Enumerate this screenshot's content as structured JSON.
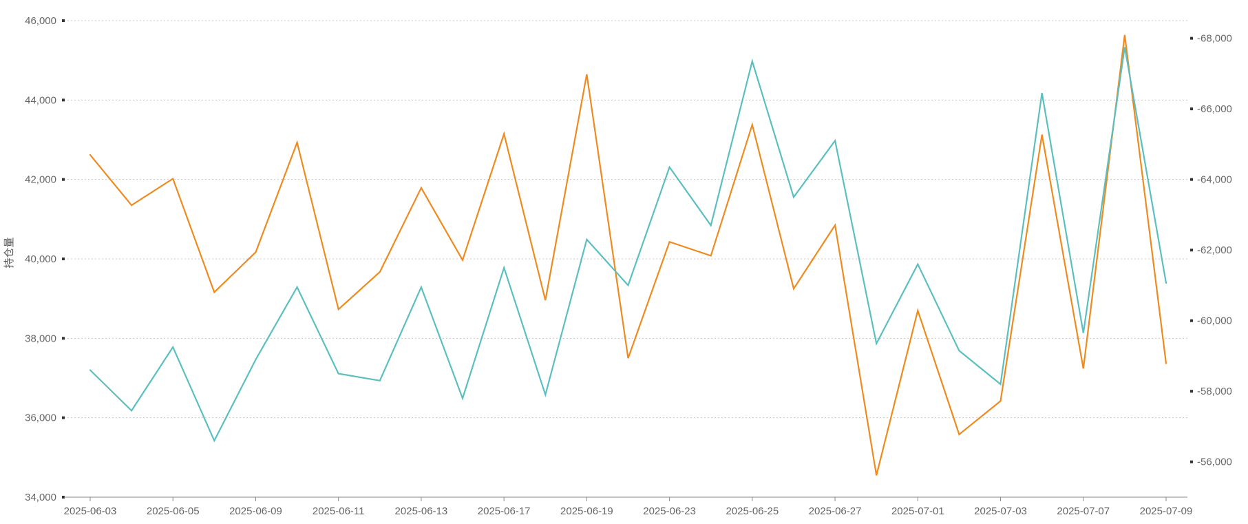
{
  "chart_data": {
    "type": "line",
    "ylabel": "持仓量",
    "x": [
      "2025-06-03",
      "2025-06-04",
      "2025-06-05",
      "2025-06-06",
      "2025-06-09",
      "2025-06-10",
      "2025-06-11",
      "2025-06-12",
      "2025-06-13",
      "2025-06-16",
      "2025-06-17",
      "2025-06-18",
      "2025-06-19",
      "2025-06-20",
      "2025-06-23",
      "2025-06-24",
      "2025-06-25",
      "2025-06-26",
      "2025-06-27",
      "2025-06-30",
      "2025-07-01",
      "2025-07-02",
      "2025-07-03",
      "2025-07-04",
      "2025-07-07",
      "2025-07-08",
      "2025-07-09"
    ],
    "x_tick_labels": [
      "2025-06-03",
      "2025-06-05",
      "2025-06-09",
      "2025-06-11",
      "2025-06-13",
      "2025-06-17",
      "2025-06-19",
      "2025-06-23",
      "2025-06-25",
      "2025-06-27",
      "2025-07-01",
      "2025-07-03",
      "2025-07-07",
      "2025-07-09"
    ],
    "y_left": {
      "ticks": [
        "34,000",
        "36,000",
        "38,000",
        "40,000",
        "42,000",
        "44,000",
        "46,000"
      ],
      "range": [
        34000,
        46000
      ]
    },
    "y_right": {
      "ticks": [
        "-56,000",
        "-58,000",
        "-60,000",
        "-62,000",
        "-64,000",
        "-66,000",
        "-68,000"
      ],
      "range": [
        -55000,
        -68500
      ],
      "inverted": true
    },
    "grid": true,
    "series": [
      {
        "axis": "left",
        "color": "#ef8a1e",
        "values": [
          42620,
          41350,
          42020,
          39160,
          40170,
          42930,
          38730,
          39670,
          41790,
          39970,
          43150,
          38960,
          44650,
          37500,
          40430,
          40080,
          43380,
          39250,
          40850,
          34550,
          38700,
          35580,
          36420,
          43130,
          37240,
          45640,
          37370
        ]
      },
      {
        "axis": "right",
        "color": "#5bbfbf",
        "values": [
          -58600,
          -57450,
          -59250,
          -56600,
          -58900,
          -60950,
          -58500,
          -58300,
          -60950,
          -57800,
          -61500,
          -57900,
          -62300,
          -61000,
          -64350,
          -62700,
          -67350,
          -63500,
          -65100,
          -59350,
          -61600,
          -59150,
          -58200,
          -66450,
          -59650,
          -67750,
          -61070
        ]
      }
    ]
  }
}
